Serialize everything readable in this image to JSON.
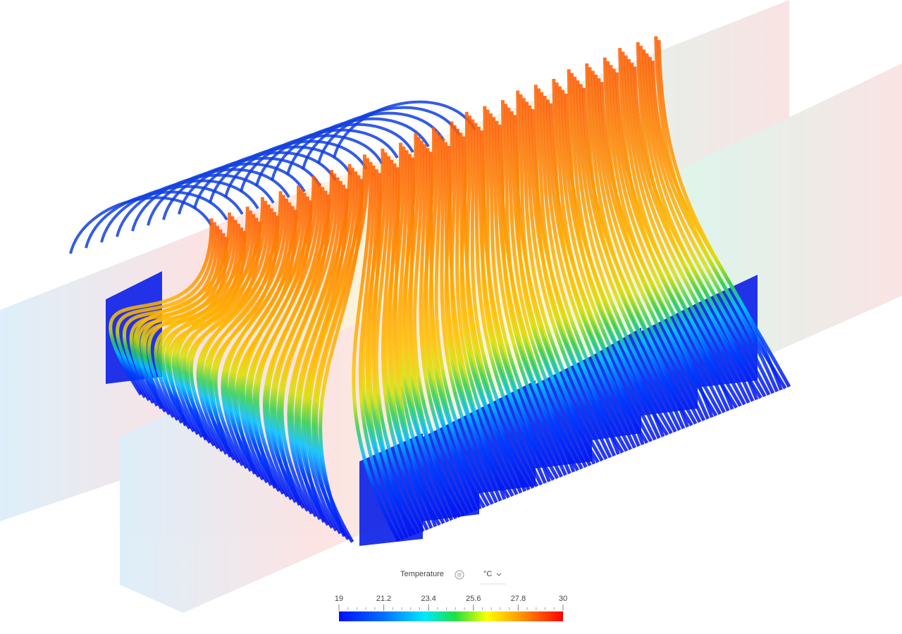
{
  "legend": {
    "title": "Temperature",
    "unit": "°C",
    "range": [
      19,
      30
    ],
    "ticks": [
      19,
      21.2,
      23.4,
      25.6,
      27.8,
      30
    ]
  }
}
